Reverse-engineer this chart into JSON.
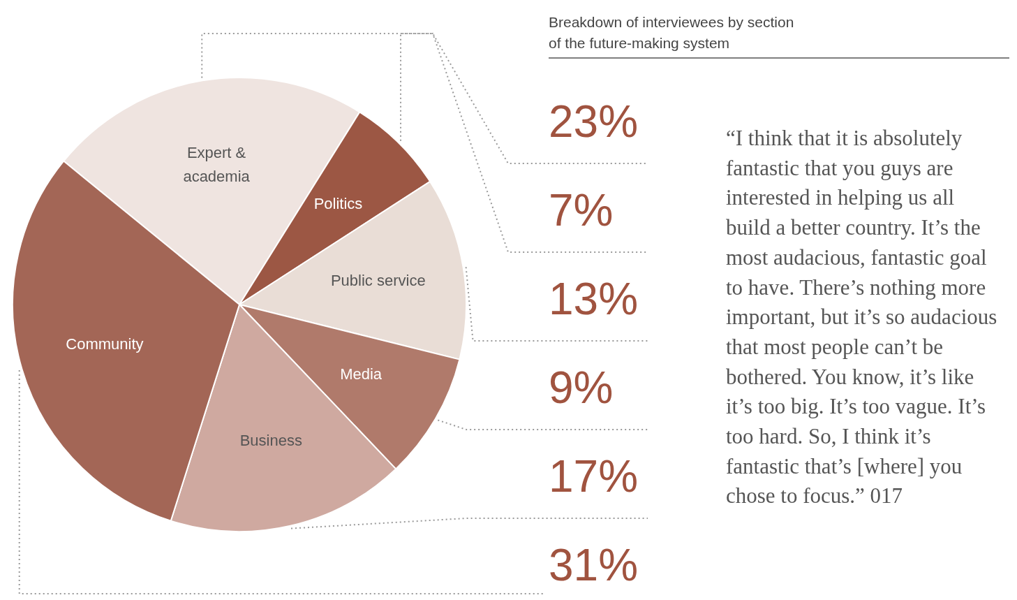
{
  "chart_data": {
    "type": "pie",
    "title": "Breakdown of interviewees by section  of the future-making system",
    "categories": [
      "Expert & academia",
      "Politics",
      "Public service",
      "Media",
      "Business",
      "Community"
    ],
    "values": [
      23,
      7,
      13,
      9,
      17,
      31
    ],
    "value_labels": [
      "23%",
      "7%",
      "13%",
      "9%",
      "17%",
      "31%"
    ],
    "colors": [
      "#efe4e0",
      "#9c5744",
      "#e9ddd6",
      "#b07a6b",
      "#cfa9a0",
      "#a36656"
    ],
    "annotations": [
      "“I think that it is absolutely fantastic that you guys are interested in helping us all build a better country. It’s the most audacious, fantastic goal to have. There’s nothing more important, but it’s so audacious that most people can’t be bothered. You know, it’s like it’s too big. It’s too vague. It’s too hard. So, I think it’s fantastic that’s [where] you chose to focus.” 017"
    ]
  }
}
